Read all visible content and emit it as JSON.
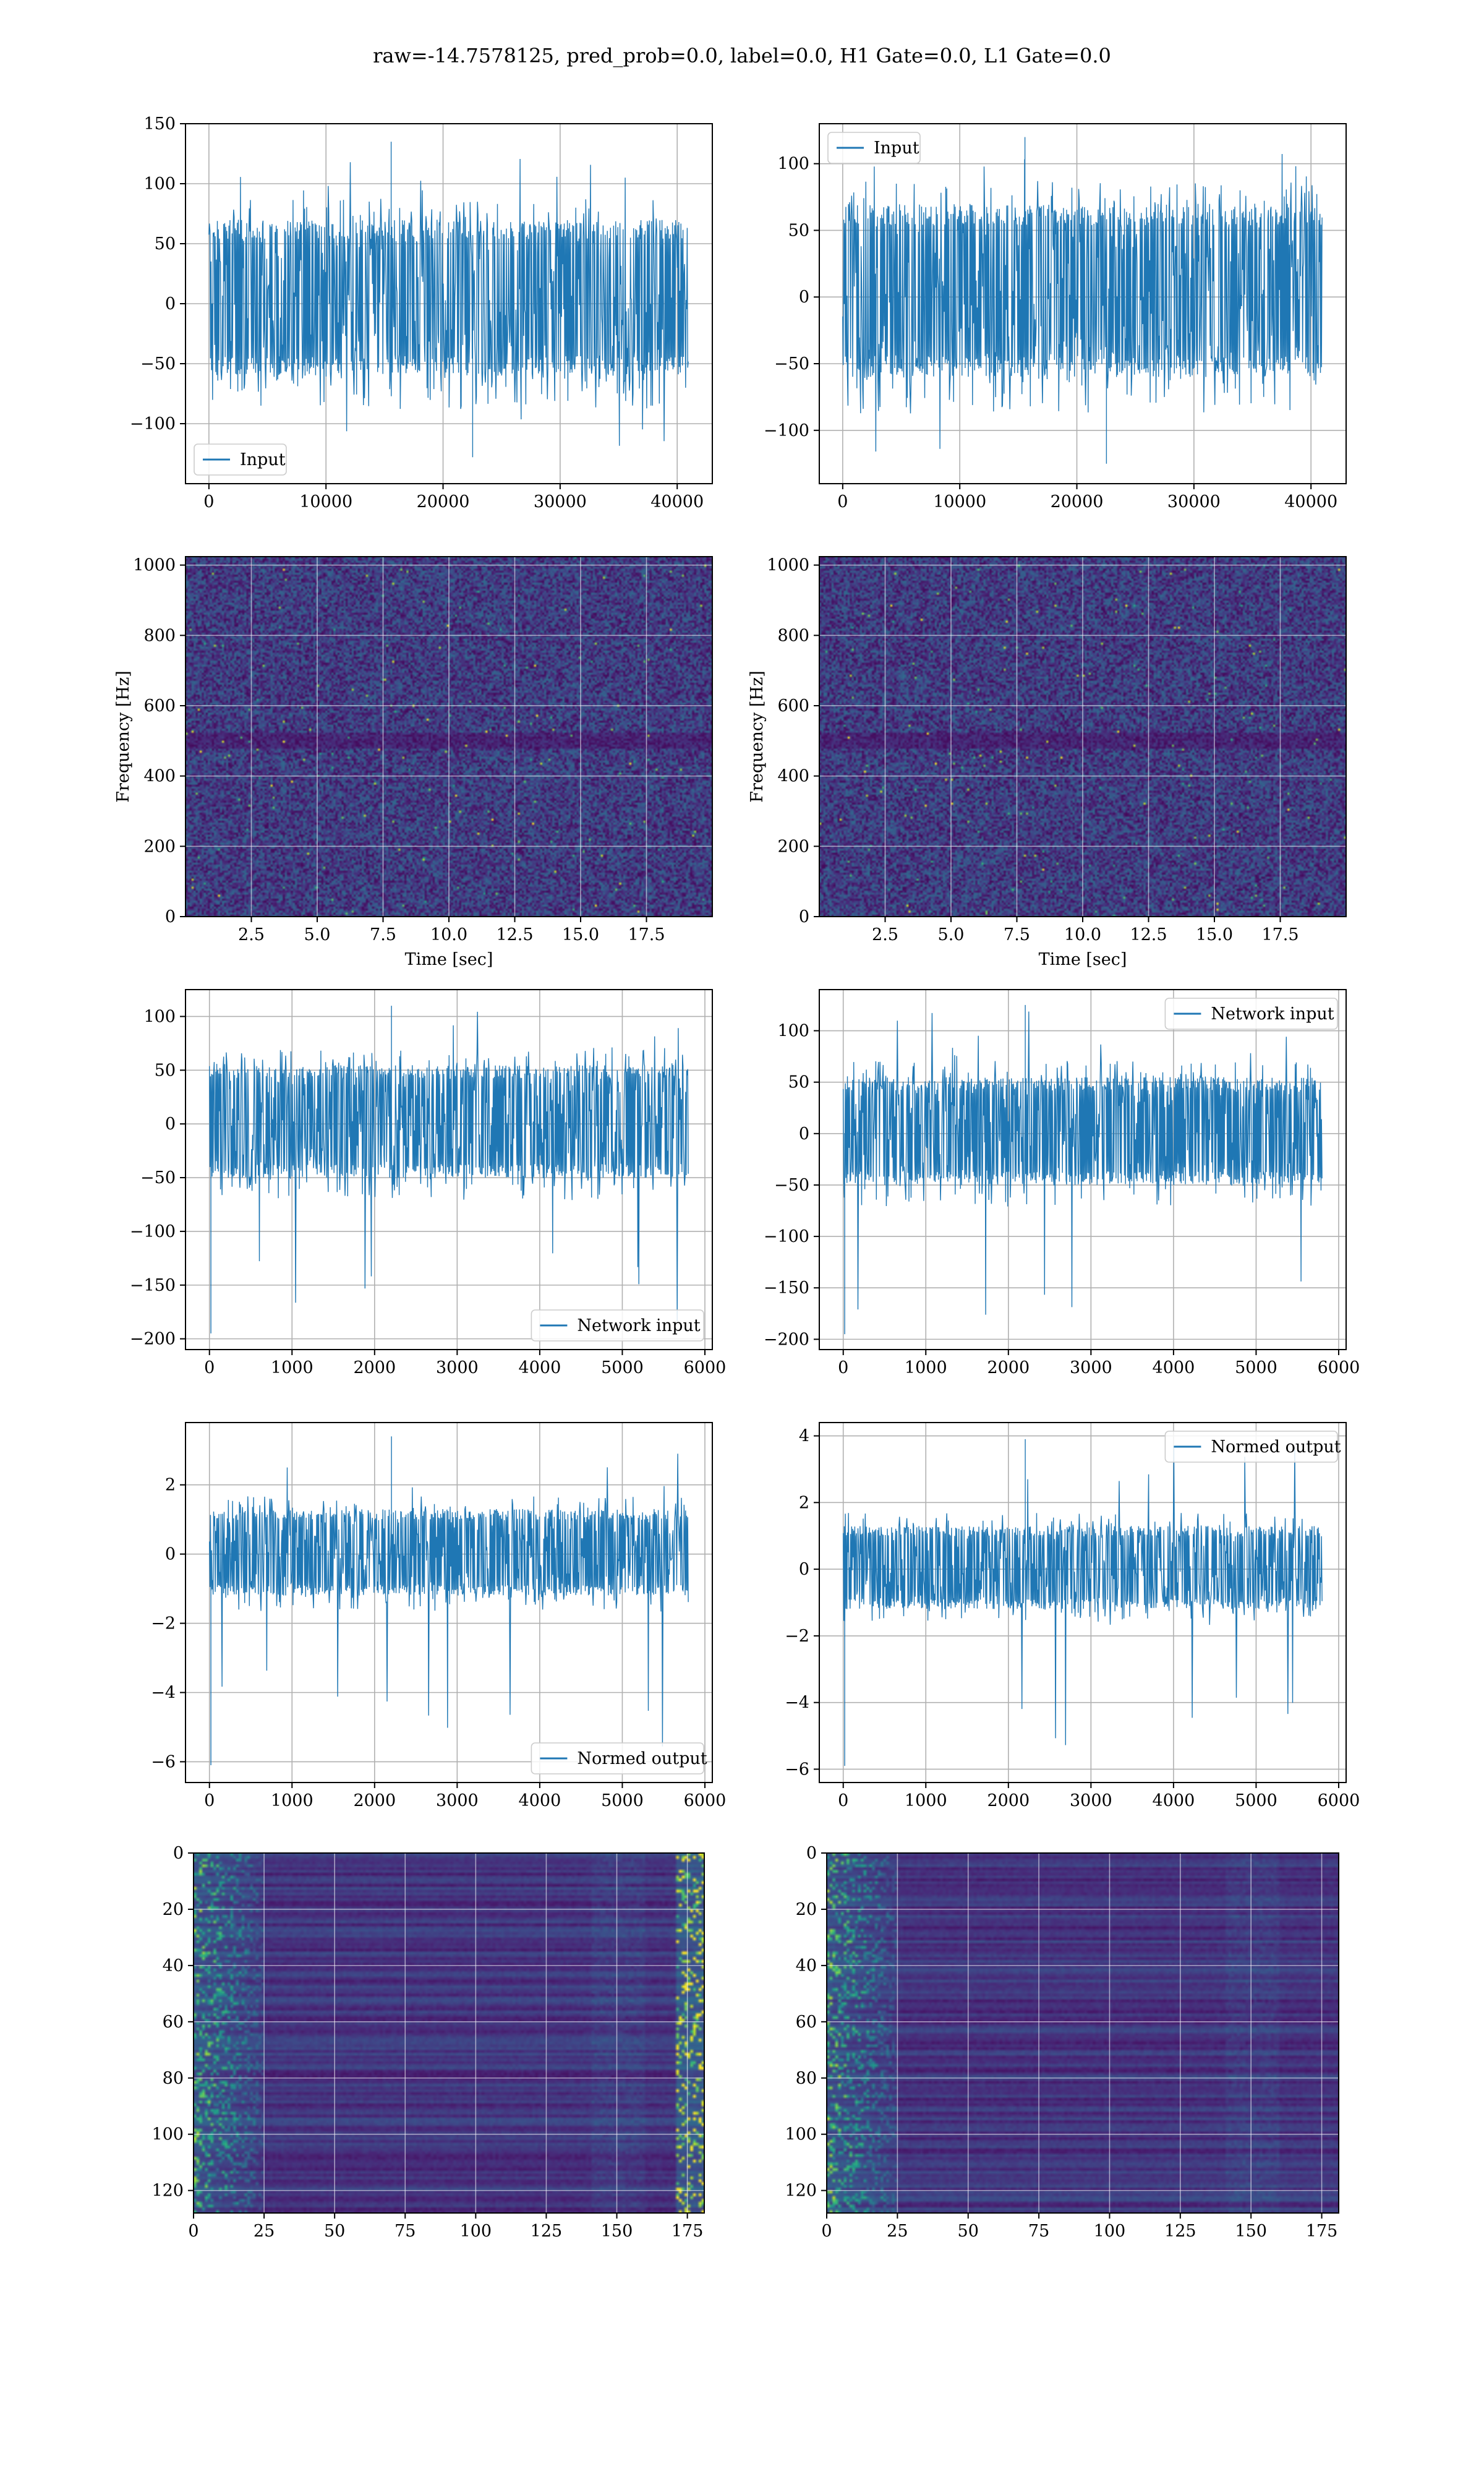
{
  "title": "raw=-14.7578125, pred_prob=0.0, label=0.0, H1 Gate=0.0, L1 Gate=0.0",
  "colors": {
    "line": "#1f77b4",
    "grid": "#b0b0b0",
    "viridis_low": "#440154",
    "viridis_mid": "#21918c",
    "viridis_high": "#fde725"
  },
  "chart_data": [
    {
      "id": "h1-input",
      "type": "line",
      "title": "",
      "xlabel": "",
      "ylabel": "",
      "series": [
        {
          "name": "Input",
          "x_range": [
            0,
            40960
          ],
          "envelope_typical": [
            -60,
            70
          ],
          "peaks": [
            135,
            -128
          ]
        }
      ],
      "xlim": [
        -2000,
        43000
      ],
      "ylim": [
        -150,
        150
      ],
      "xticks": [
        "0",
        "10000",
        "20000",
        "30000",
        "40000"
      ],
      "xtick_values": [
        0,
        10000,
        20000,
        30000,
        40000
      ],
      "yticks": [
        "150",
        "100",
        "50",
        "0",
        "−50",
        "−100"
      ],
      "ytick_values": [
        150,
        100,
        50,
        0,
        -50,
        -100
      ],
      "legend": "lower-left",
      "grid": true
    },
    {
      "id": "l1-input",
      "type": "line",
      "title": "",
      "xlabel": "",
      "ylabel": "",
      "series": [
        {
          "name": "Input",
          "x_range": [
            0,
            40960
          ],
          "envelope_typical": [
            -60,
            70
          ],
          "peaks": [
            120,
            -125
          ]
        }
      ],
      "xlim": [
        -2000,
        43000
      ],
      "ylim": [
        -140,
        130
      ],
      "xticks": [
        "0",
        "10000",
        "20000",
        "30000",
        "40000"
      ],
      "xtick_values": [
        0,
        10000,
        20000,
        30000,
        40000
      ],
      "yticks": [
        "100",
        "50",
        "0",
        "−50",
        "−100"
      ],
      "ytick_values": [
        100,
        50,
        0,
        -50,
        -100
      ],
      "legend": "upper-left",
      "grid": true
    },
    {
      "id": "h1-spectrogram",
      "type": "heatmap",
      "title": "",
      "xlabel": "Time [sec]",
      "ylabel": "Frequency [Hz]",
      "xlim": [
        0,
        20
      ],
      "ylim": [
        0,
        1024
      ],
      "xticks": [
        "2.5",
        "5.0",
        "7.5",
        "10.0",
        "12.5",
        "15.0",
        "17.5"
      ],
      "xtick_values": [
        2.5,
        5.0,
        7.5,
        10.0,
        12.5,
        15.0,
        17.5
      ],
      "yticks": [
        "1000",
        "800",
        "600",
        "400",
        "200",
        "0"
      ],
      "ytick_values": [
        1000,
        800,
        600,
        400,
        200,
        0
      ],
      "colormap": "viridis",
      "grid": true
    },
    {
      "id": "l1-spectrogram",
      "type": "heatmap",
      "title": "",
      "xlabel": "Time [sec]",
      "ylabel": "Frequency [Hz]",
      "xlim": [
        0,
        20
      ],
      "ylim": [
        0,
        1024
      ],
      "xticks": [
        "2.5",
        "5.0",
        "7.5",
        "10.0",
        "12.5",
        "15.0",
        "17.5"
      ],
      "xtick_values": [
        2.5,
        5.0,
        7.5,
        10.0,
        12.5,
        15.0,
        17.5
      ],
      "yticks": [
        "1000",
        "800",
        "600",
        "400",
        "200",
        "0"
      ],
      "ytick_values": [
        1000,
        800,
        600,
        400,
        200,
        0
      ],
      "colormap": "viridis",
      "grid": true
    },
    {
      "id": "h1-network-input",
      "type": "line",
      "title": "",
      "xlabel": "",
      "ylabel": "",
      "series": [
        {
          "name": "Network input",
          "x_range": [
            0,
            5800
          ],
          "envelope_typical": [
            -50,
            55
          ],
          "peaks": [
            110,
            -195
          ]
        }
      ],
      "xlim": [
        -290,
        6090
      ],
      "ylim": [
        -210,
        125
      ],
      "xticks": [
        "0",
        "1000",
        "2000",
        "3000",
        "4000",
        "5000",
        "6000"
      ],
      "xtick_values": [
        0,
        1000,
        2000,
        3000,
        4000,
        5000,
        6000
      ],
      "yticks": [
        "100",
        "50",
        "0",
        "−50",
        "−100",
        "−150",
        "−200"
      ],
      "ytick_values": [
        100,
        50,
        0,
        -50,
        -100,
        -150,
        -200
      ],
      "legend": "lower-right",
      "grid": true
    },
    {
      "id": "l1-network-input",
      "type": "line",
      "title": "",
      "xlabel": "",
      "ylabel": "",
      "series": [
        {
          "name": "Network input",
          "x_range": [
            0,
            5800
          ],
          "envelope_typical": [
            -50,
            55
          ],
          "peaks": [
            125,
            -195
          ]
        }
      ],
      "xlim": [
        -290,
        6090
      ],
      "ylim": [
        -210,
        140
      ],
      "xticks": [
        "0",
        "1000",
        "2000",
        "3000",
        "4000",
        "5000",
        "6000"
      ],
      "xtick_values": [
        0,
        1000,
        2000,
        3000,
        4000,
        5000,
        6000
      ],
      "yticks": [
        "100",
        "50",
        "0",
        "−50",
        "−100",
        "−150",
        "−200"
      ],
      "ytick_values": [
        100,
        50,
        0,
        -50,
        -100,
        -150,
        -200
      ],
      "legend": "upper-right",
      "grid": true
    },
    {
      "id": "h1-normed-output",
      "type": "line",
      "title": "",
      "xlabel": "",
      "ylabel": "",
      "series": [
        {
          "name": "Normed output",
          "x_range": [
            0,
            5800
          ],
          "envelope_typical": [
            -1.2,
            1.3
          ],
          "peaks": [
            3.4,
            -6.1
          ]
        }
      ],
      "xlim": [
        -290,
        6090
      ],
      "ylim": [
        -6.6,
        3.8
      ],
      "xticks": [
        "0",
        "1000",
        "2000",
        "3000",
        "4000",
        "5000",
        "6000"
      ],
      "xtick_values": [
        0,
        1000,
        2000,
        3000,
        4000,
        5000,
        6000
      ],
      "yticks": [
        "2",
        "0",
        "−2",
        "−4",
        "−6"
      ],
      "ytick_values": [
        2,
        0,
        -2,
        -4,
        -6
      ],
      "legend": "lower-right",
      "grid": true
    },
    {
      "id": "l1-normed-output",
      "type": "line",
      "title": "",
      "xlabel": "",
      "ylabel": "",
      "series": [
        {
          "name": "Normed output",
          "x_range": [
            0,
            5800
          ],
          "envelope_typical": [
            -1.2,
            1.3
          ],
          "peaks": [
            3.9,
            -5.9
          ]
        }
      ],
      "xlim": [
        -290,
        6090
      ],
      "ylim": [
        -6.4,
        4.4
      ],
      "xticks": [
        "0",
        "1000",
        "2000",
        "3000",
        "4000",
        "5000",
        "6000"
      ],
      "xtick_values": [
        0,
        1000,
        2000,
        3000,
        4000,
        5000,
        6000
      ],
      "yticks": [
        "4",
        "2",
        "0",
        "−2",
        "−4",
        "−6"
      ],
      "ytick_values": [
        4,
        2,
        0,
        -2,
        -4,
        -6
      ],
      "legend": "upper-right",
      "grid": true
    },
    {
      "id": "h1-feature-map",
      "type": "heatmap",
      "title": "",
      "xlabel": "",
      "ylabel": "",
      "xlim": [
        0,
        181
      ],
      "ylim": [
        128,
        0
      ],
      "rows": 128,
      "cols": 181,
      "xticks": [
        "0",
        "25",
        "50",
        "75",
        "100",
        "125",
        "150",
        "175"
      ],
      "xtick_values": [
        0,
        25,
        50,
        75,
        100,
        125,
        150,
        175
      ],
      "yticks": [
        "0",
        "20",
        "40",
        "60",
        "80",
        "100",
        "120"
      ],
      "ytick_values": [
        0,
        20,
        40,
        60,
        80,
        100,
        120
      ],
      "colormap": "viridis",
      "grid": true
    },
    {
      "id": "l1-feature-map",
      "type": "heatmap",
      "title": "",
      "xlabel": "",
      "ylabel": "",
      "xlim": [
        0,
        181
      ],
      "ylim": [
        128,
        0
      ],
      "rows": 128,
      "cols": 181,
      "xticks": [
        "0",
        "25",
        "50",
        "75",
        "100",
        "125",
        "150",
        "175"
      ],
      "xtick_values": [
        0,
        25,
        50,
        75,
        100,
        125,
        150,
        175
      ],
      "yticks": [
        "0",
        "20",
        "40",
        "60",
        "80",
        "100",
        "120"
      ],
      "ytick_values": [
        0,
        20,
        40,
        60,
        80,
        100,
        120
      ],
      "colormap": "viridis",
      "grid": true
    }
  ]
}
